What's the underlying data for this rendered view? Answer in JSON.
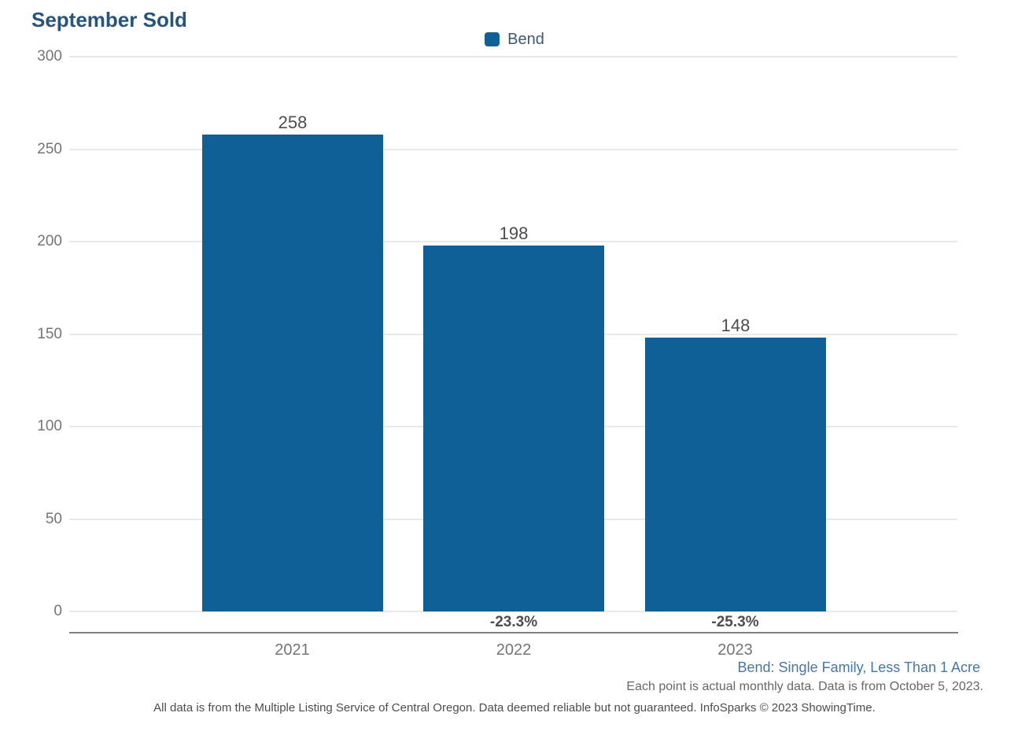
{
  "chart": {
    "title": "September Sold",
    "legend": [
      {
        "label": "Bend",
        "color": "#0F6096"
      }
    ]
  },
  "chart_data": {
    "type": "bar",
    "title": "September Sold",
    "categories": [
      "2021",
      "2022",
      "2023"
    ],
    "series": [
      {
        "name": "Bend",
        "color": "#0F6096",
        "values": [
          258,
          198,
          148
        ]
      }
    ],
    "value_labels": [
      "258",
      "198",
      "148"
    ],
    "pct_change_labels": [
      "",
      "-23.3%",
      "-25.3%"
    ],
    "xlabel": "",
    "ylabel": "",
    "ylim": [
      0,
      300
    ],
    "yticks": [
      0,
      50,
      100,
      150,
      200,
      250,
      300
    ],
    "grid": true,
    "legend_position": "top-center"
  },
  "footnotes": {
    "series_definition": "Bend: Single Family, Less Than 1 Acre",
    "data_note": "Each point is actual monthly data. Data is from October 5, 2023.",
    "disclaimer": "All data is from the Multiple Listing Service of Central Oregon. Data deemed reliable but not guaranteed. InfoSparks © 2023 ShowingTime."
  },
  "colors": {
    "bar": "#0F6096",
    "title": "#26547C",
    "gridline": "#E8E8E8",
    "axis_line": "#7F7F7F",
    "tick_text": "#757575",
    "value_text": "#4D4D4D",
    "series_annotation": "#4577AB",
    "note_text": "#666666"
  }
}
